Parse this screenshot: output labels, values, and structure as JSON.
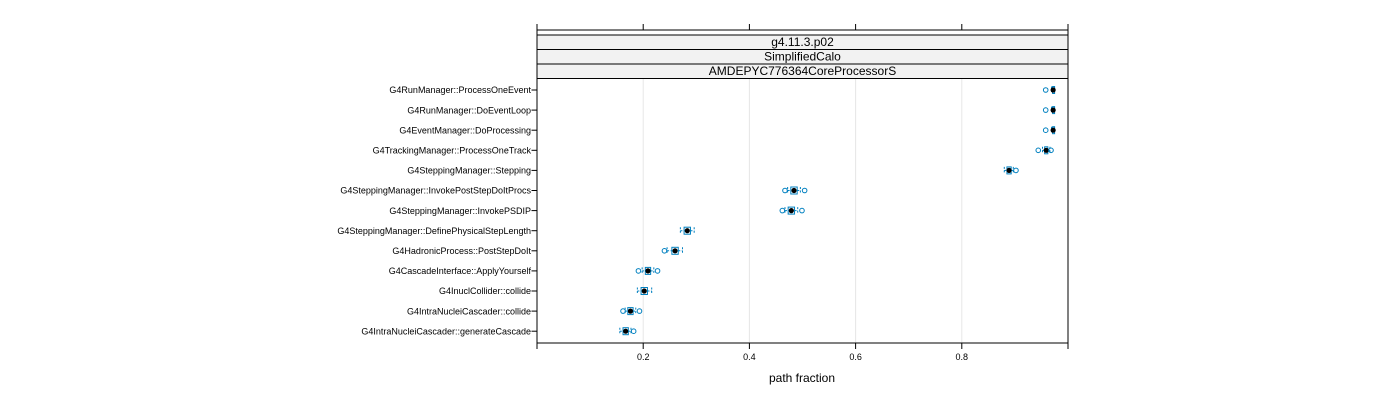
{
  "chart_data": {
    "type": "box",
    "strips": [
      "g4.11.3.p02",
      "SimplifiedCalo",
      "AMDEPYC776364CoreProcessorS"
    ],
    "xlabel": "path fraction",
    "xlim": [
      0.0,
      1.0
    ],
    "xticks": [
      0.2,
      0.4,
      0.6,
      0.8
    ],
    "xtick_labels": [
      "0.2",
      "0.4",
      "0.6",
      "0.8"
    ],
    "grid": true,
    "categories": [
      "G4RunManager::ProcessOneEvent",
      "G4RunManager::DoEventLoop",
      "G4EventManager::DoProcessing",
      "G4TrackingManager::ProcessOneTrack",
      "G4SteppingManager::Stepping",
      "G4SteppingManager::InvokePostStepDoItProcs",
      "G4SteppingManager::InvokePSDIP",
      "G4SteppingManager::DefinePhysicalStepLength",
      "G4HadronicProcess::PostStepDoIt",
      "G4CascadeInterface::ApplyYourself",
      "G4InuclCollider::collide",
      "G4IntraNucleiCascader::collide",
      "G4IntraNucleiCascader::generateCascade"
    ],
    "boxes": [
      {
        "whislo": 0.969,
        "q1": 0.971,
        "median": 0.972,
        "q3": 0.973,
        "whishi": 0.974,
        "outliers": [
          0.958
        ]
      },
      {
        "whislo": 0.969,
        "q1": 0.971,
        "median": 0.972,
        "q3": 0.973,
        "whishi": 0.974,
        "outliers": [
          0.958
        ]
      },
      {
        "whislo": 0.969,
        "q1": 0.971,
        "median": 0.972,
        "q3": 0.973,
        "whishi": 0.974,
        "outliers": [
          0.958
        ]
      },
      {
        "whislo": 0.952,
        "q1": 0.956,
        "median": 0.959,
        "q3": 0.962,
        "whishi": 0.966,
        "outliers": [
          0.944,
          0.968
        ]
      },
      {
        "whislo": 0.88,
        "q1": 0.885,
        "median": 0.889,
        "q3": 0.893,
        "whishi": 0.897,
        "outliers": [
          0.902
        ]
      },
      {
        "whislo": 0.472,
        "q1": 0.478,
        "median": 0.484,
        "q3": 0.49,
        "whishi": 0.496,
        "outliers": [
          0.467,
          0.504
        ]
      },
      {
        "whislo": 0.467,
        "q1": 0.473,
        "median": 0.479,
        "q3": 0.485,
        "whishi": 0.491,
        "outliers": [
          0.462,
          0.499
        ]
      },
      {
        "whislo": 0.27,
        "q1": 0.277,
        "median": 0.283,
        "q3": 0.289,
        "whishi": 0.296,
        "outliers": []
      },
      {
        "whislo": 0.245,
        "q1": 0.254,
        "median": 0.26,
        "q3": 0.266,
        "whishi": 0.274,
        "outliers": [
          0.24
        ]
      },
      {
        "whislo": 0.198,
        "q1": 0.204,
        "median": 0.209,
        "q3": 0.214,
        "whishi": 0.22,
        "outliers": [
          0.191,
          0.227
        ]
      },
      {
        "whislo": 0.189,
        "q1": 0.196,
        "median": 0.202,
        "q3": 0.208,
        "whishi": 0.216,
        "outliers": []
      },
      {
        "whislo": 0.166,
        "q1": 0.171,
        "median": 0.176,
        "q3": 0.181,
        "whishi": 0.186,
        "outliers": [
          0.162,
          0.193
        ]
      },
      {
        "whislo": 0.156,
        "q1": 0.162,
        "median": 0.167,
        "q3": 0.172,
        "whishi": 0.177,
        "outliers": [
          0.182
        ]
      }
    ]
  },
  "colors": {
    "box": "#0080c0",
    "median": "#000000",
    "strip_bg": "#f2f2f2",
    "grid": "#e6e6e6"
  }
}
